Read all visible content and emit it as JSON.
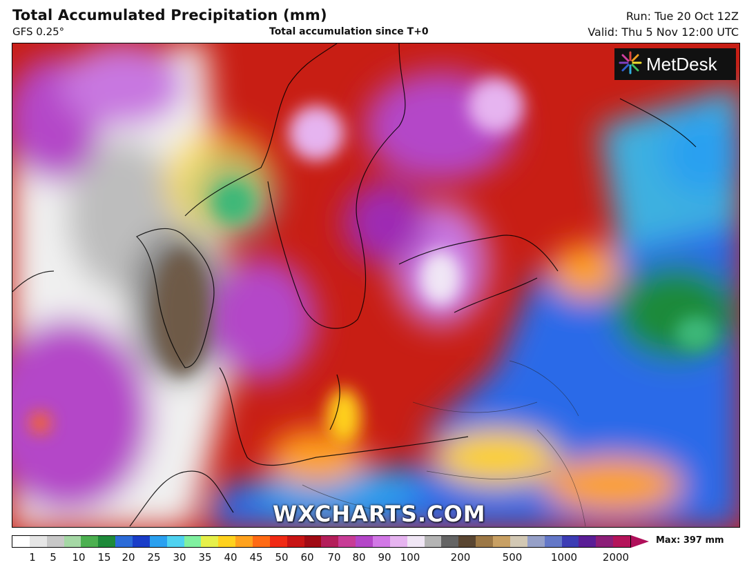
{
  "header": {
    "title": "Total Accumulated Precipitation (mm)",
    "model": "GFS 0.25°",
    "subtitle": "Total accumulation since T+0",
    "run": "Run: Tue 20 Oct 12Z",
    "valid": "Valid: Thu 5 Nov 12:00 UTC"
  },
  "logo": {
    "text": "MetDesk",
    "icon": "starburst-icon"
  },
  "watermark": "WXCHARTS.COM",
  "legend": {
    "max_label": "Max: 397 mm",
    "ticks": [
      "1",
      "5",
      "10",
      "15",
      "20",
      "25",
      "30",
      "35",
      "40",
      "45",
      "50",
      "60",
      "70",
      "80",
      "90",
      "100",
      "200",
      "500",
      "1000",
      "2000"
    ],
    "colors": [
      "#ffffff",
      "#e6e6e6",
      "#c8c8c8",
      "#a5d8a5",
      "#4cb050",
      "#1e8a3a",
      "#2c6bd8",
      "#1a3dc8",
      "#2aa0f0",
      "#4fd2f0",
      "#80f0a0",
      "#e6f04a",
      "#ffd21e",
      "#ffa21e",
      "#ff6a14",
      "#f02a14",
      "#c81414",
      "#a00a14",
      "#b41e5a",
      "#c83c96",
      "#b446c8",
      "#d278e6",
      "#e6b4f0",
      "#f0e6f5",
      "#b4b4b4",
      "#646464",
      "#5a4632",
      "#9c7846",
      "#c8a064",
      "#d2c8b4",
      "#96a0c8",
      "#6478c8",
      "#3c3cb4",
      "#5a1e96",
      "#8c1e78",
      "#b4145a"
    ]
  },
  "map": {
    "description_colors": {
      "ocean_dry": "#f5f5f5",
      "heavy_red": "#c81e14",
      "very_heavy_purple": "#b446c8",
      "moderate_blue": "#2a6ae8",
      "light_green": "#3cb878",
      "extreme_brown": "#6e5a46"
    }
  }
}
